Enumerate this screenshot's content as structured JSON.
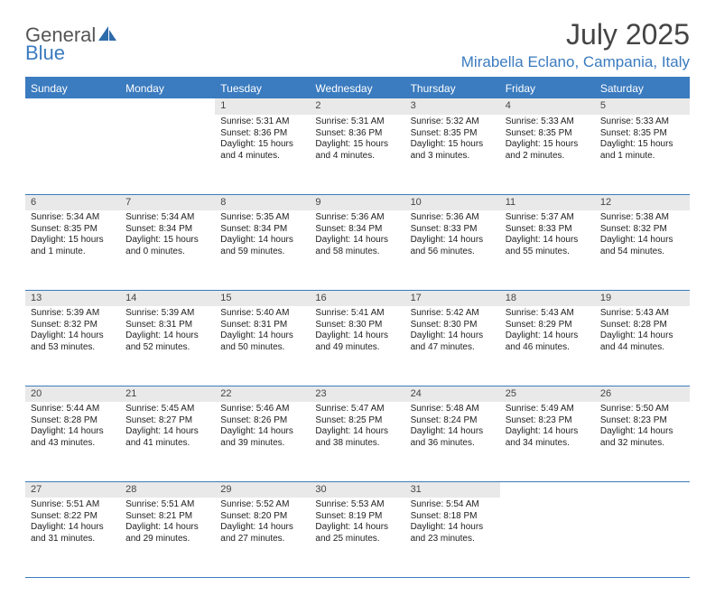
{
  "logo": {
    "word1": "General",
    "word2": "Blue"
  },
  "title": "July 2025",
  "location": "Mirabella Eclano, Campania, Italy",
  "colors": {
    "accent": "#3b7bbf",
    "header_bg": "#3b7bbf",
    "header_text": "#ffffff",
    "daynum_bg": "#e9e9e9",
    "text": "#222222",
    "logo_gray": "#555555"
  },
  "day_headers": [
    "Sunday",
    "Monday",
    "Tuesday",
    "Wednesday",
    "Thursday",
    "Friday",
    "Saturday"
  ],
  "weeks": [
    [
      {
        "n": "",
        "lines": []
      },
      {
        "n": "",
        "lines": []
      },
      {
        "n": "1",
        "lines": [
          "Sunrise: 5:31 AM",
          "Sunset: 8:36 PM",
          "Daylight: 15 hours",
          "and 4 minutes."
        ]
      },
      {
        "n": "2",
        "lines": [
          "Sunrise: 5:31 AM",
          "Sunset: 8:36 PM",
          "Daylight: 15 hours",
          "and 4 minutes."
        ]
      },
      {
        "n": "3",
        "lines": [
          "Sunrise: 5:32 AM",
          "Sunset: 8:35 PM",
          "Daylight: 15 hours",
          "and 3 minutes."
        ]
      },
      {
        "n": "4",
        "lines": [
          "Sunrise: 5:33 AM",
          "Sunset: 8:35 PM",
          "Daylight: 15 hours",
          "and 2 minutes."
        ]
      },
      {
        "n": "5",
        "lines": [
          "Sunrise: 5:33 AM",
          "Sunset: 8:35 PM",
          "Daylight: 15 hours",
          "and 1 minute."
        ]
      }
    ],
    [
      {
        "n": "6",
        "lines": [
          "Sunrise: 5:34 AM",
          "Sunset: 8:35 PM",
          "Daylight: 15 hours",
          "and 1 minute."
        ]
      },
      {
        "n": "7",
        "lines": [
          "Sunrise: 5:34 AM",
          "Sunset: 8:34 PM",
          "Daylight: 15 hours",
          "and 0 minutes."
        ]
      },
      {
        "n": "8",
        "lines": [
          "Sunrise: 5:35 AM",
          "Sunset: 8:34 PM",
          "Daylight: 14 hours",
          "and 59 minutes."
        ]
      },
      {
        "n": "9",
        "lines": [
          "Sunrise: 5:36 AM",
          "Sunset: 8:34 PM",
          "Daylight: 14 hours",
          "and 58 minutes."
        ]
      },
      {
        "n": "10",
        "lines": [
          "Sunrise: 5:36 AM",
          "Sunset: 8:33 PM",
          "Daylight: 14 hours",
          "and 56 minutes."
        ]
      },
      {
        "n": "11",
        "lines": [
          "Sunrise: 5:37 AM",
          "Sunset: 8:33 PM",
          "Daylight: 14 hours",
          "and 55 minutes."
        ]
      },
      {
        "n": "12",
        "lines": [
          "Sunrise: 5:38 AM",
          "Sunset: 8:32 PM",
          "Daylight: 14 hours",
          "and 54 minutes."
        ]
      }
    ],
    [
      {
        "n": "13",
        "lines": [
          "Sunrise: 5:39 AM",
          "Sunset: 8:32 PM",
          "Daylight: 14 hours",
          "and 53 minutes."
        ]
      },
      {
        "n": "14",
        "lines": [
          "Sunrise: 5:39 AM",
          "Sunset: 8:31 PM",
          "Daylight: 14 hours",
          "and 52 minutes."
        ]
      },
      {
        "n": "15",
        "lines": [
          "Sunrise: 5:40 AM",
          "Sunset: 8:31 PM",
          "Daylight: 14 hours",
          "and 50 minutes."
        ]
      },
      {
        "n": "16",
        "lines": [
          "Sunrise: 5:41 AM",
          "Sunset: 8:30 PM",
          "Daylight: 14 hours",
          "and 49 minutes."
        ]
      },
      {
        "n": "17",
        "lines": [
          "Sunrise: 5:42 AM",
          "Sunset: 8:30 PM",
          "Daylight: 14 hours",
          "and 47 minutes."
        ]
      },
      {
        "n": "18",
        "lines": [
          "Sunrise: 5:43 AM",
          "Sunset: 8:29 PM",
          "Daylight: 14 hours",
          "and 46 minutes."
        ]
      },
      {
        "n": "19",
        "lines": [
          "Sunrise: 5:43 AM",
          "Sunset: 8:28 PM",
          "Daylight: 14 hours",
          "and 44 minutes."
        ]
      }
    ],
    [
      {
        "n": "20",
        "lines": [
          "Sunrise: 5:44 AM",
          "Sunset: 8:28 PM",
          "Daylight: 14 hours",
          "and 43 minutes."
        ]
      },
      {
        "n": "21",
        "lines": [
          "Sunrise: 5:45 AM",
          "Sunset: 8:27 PM",
          "Daylight: 14 hours",
          "and 41 minutes."
        ]
      },
      {
        "n": "22",
        "lines": [
          "Sunrise: 5:46 AM",
          "Sunset: 8:26 PM",
          "Daylight: 14 hours",
          "and 39 minutes."
        ]
      },
      {
        "n": "23",
        "lines": [
          "Sunrise: 5:47 AM",
          "Sunset: 8:25 PM",
          "Daylight: 14 hours",
          "and 38 minutes."
        ]
      },
      {
        "n": "24",
        "lines": [
          "Sunrise: 5:48 AM",
          "Sunset: 8:24 PM",
          "Daylight: 14 hours",
          "and 36 minutes."
        ]
      },
      {
        "n": "25",
        "lines": [
          "Sunrise: 5:49 AM",
          "Sunset: 8:23 PM",
          "Daylight: 14 hours",
          "and 34 minutes."
        ]
      },
      {
        "n": "26",
        "lines": [
          "Sunrise: 5:50 AM",
          "Sunset: 8:23 PM",
          "Daylight: 14 hours",
          "and 32 minutes."
        ]
      }
    ],
    [
      {
        "n": "27",
        "lines": [
          "Sunrise: 5:51 AM",
          "Sunset: 8:22 PM",
          "Daylight: 14 hours",
          "and 31 minutes."
        ]
      },
      {
        "n": "28",
        "lines": [
          "Sunrise: 5:51 AM",
          "Sunset: 8:21 PM",
          "Daylight: 14 hours",
          "and 29 minutes."
        ]
      },
      {
        "n": "29",
        "lines": [
          "Sunrise: 5:52 AM",
          "Sunset: 8:20 PM",
          "Daylight: 14 hours",
          "and 27 minutes."
        ]
      },
      {
        "n": "30",
        "lines": [
          "Sunrise: 5:53 AM",
          "Sunset: 8:19 PM",
          "Daylight: 14 hours",
          "and 25 minutes."
        ]
      },
      {
        "n": "31",
        "lines": [
          "Sunrise: 5:54 AM",
          "Sunset: 8:18 PM",
          "Daylight: 14 hours",
          "and 23 minutes."
        ]
      },
      {
        "n": "",
        "lines": []
      },
      {
        "n": "",
        "lines": []
      }
    ]
  ]
}
